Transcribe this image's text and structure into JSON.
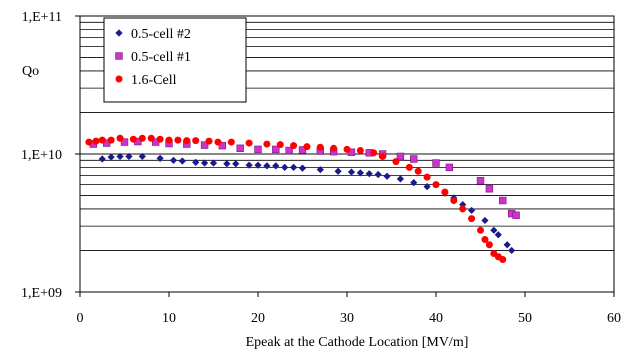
{
  "chart_data": {
    "type": "scatter",
    "xlabel": "Epeak at the Cathode Location  [MV/m]",
    "ylabel": "Qo",
    "xlim": [
      0,
      60
    ],
    "ylim": [
      1000000000.0,
      100000000000.0
    ],
    "y_scale": "log",
    "x_ticks": [
      0,
      10,
      20,
      30,
      40,
      50,
      60
    ],
    "y_ticks": [
      {
        "value": 1000000000.0,
        "label": "1,E+09"
      },
      {
        "value": 10000000000.0,
        "label": "1,E+10"
      },
      {
        "value": 100000000000.0,
        "label": "1,E+11"
      }
    ],
    "grid": {
      "horizontal_minor": true,
      "vertical": false
    },
    "legend_position": "top-left",
    "series": [
      {
        "name": "0.5-cell #2",
        "marker": "diamond",
        "color": "#1a1a8c",
        "points": [
          [
            2.5,
            9200000000.0
          ],
          [
            3.5,
            9500000000.0
          ],
          [
            4.5,
            9600000000.0
          ],
          [
            5.5,
            9600000000.0
          ],
          [
            7.0,
            9600000000.0
          ],
          [
            9.0,
            9300000000.0
          ],
          [
            10.5,
            9000000000.0
          ],
          [
            11.5,
            8900000000.0
          ],
          [
            13.0,
            8700000000.0
          ],
          [
            14.0,
            8600000000.0
          ],
          [
            15.0,
            8600000000.0
          ],
          [
            16.5,
            8500000000.0
          ],
          [
            17.5,
            8500000000.0
          ],
          [
            19.0,
            8300000000.0
          ],
          [
            20.0,
            8300000000.0
          ],
          [
            21.0,
            8200000000.0
          ],
          [
            22.0,
            8200000000.0
          ],
          [
            23.0,
            8000000000.0
          ],
          [
            24.0,
            8000000000.0
          ],
          [
            25.0,
            7900000000.0
          ],
          [
            27.0,
            7700000000.0
          ],
          [
            29.0,
            7500000000.0
          ],
          [
            30.5,
            7400000000.0
          ],
          [
            31.5,
            7300000000.0
          ],
          [
            32.5,
            7200000000.0
          ],
          [
            33.5,
            7100000000.0
          ],
          [
            34.5,
            6900000000.0
          ],
          [
            36.0,
            6600000000.0
          ],
          [
            37.5,
            6200000000.0
          ],
          [
            39.0,
            5800000000.0
          ],
          [
            41.0,
            5200000000.0
          ],
          [
            42.0,
            4800000000.0
          ],
          [
            43.0,
            4300000000.0
          ],
          [
            44.0,
            3900000000.0
          ],
          [
            45.5,
            3300000000.0
          ],
          [
            46.5,
            2800000000.0
          ],
          [
            47.0,
            2600000000.0
          ],
          [
            48.0,
            2200000000.0
          ],
          [
            48.5,
            2000000000.0
          ]
        ]
      },
      {
        "name": "0.5-cell #1",
        "marker": "square",
        "color": "#cc33cc",
        "points": [
          [
            1.5,
            11800000000.0
          ],
          [
            3.0,
            12000000000.0
          ],
          [
            5.0,
            12200000000.0
          ],
          [
            6.5,
            12300000000.0
          ],
          [
            8.5,
            12200000000.0
          ],
          [
            10.0,
            11900000000.0
          ],
          [
            12.0,
            11800000000.0
          ],
          [
            14.0,
            11600000000.0
          ],
          [
            16.0,
            11500000000.0
          ],
          [
            18.0,
            11000000000.0
          ],
          [
            20.0,
            10800000000.0
          ],
          [
            22.0,
            10800000000.0
          ],
          [
            23.5,
            10600000000.0
          ],
          [
            25.0,
            10700000000.0
          ],
          [
            27.0,
            10500000000.0
          ],
          [
            28.5,
            10400000000.0
          ],
          [
            30.5,
            10300000000.0
          ],
          [
            32.5,
            10200000000.0
          ],
          [
            34.0,
            10000000000.0
          ],
          [
            36.0,
            9600000000.0
          ],
          [
            37.5,
            9200000000.0
          ],
          [
            40.0,
            8600000000.0
          ],
          [
            41.5,
            8000000000.0
          ],
          [
            45.0,
            6400000000.0
          ],
          [
            46.0,
            5600000000.0
          ],
          [
            47.5,
            4600000000.0
          ],
          [
            48.5,
            3700000000.0
          ],
          [
            49.0,
            3600000000.0
          ]
        ]
      },
      {
        "name": "1.6-Cell",
        "marker": "circle",
        "color": "#ff0000",
        "points": [
          [
            1.0,
            12200000000.0
          ],
          [
            1.8,
            12400000000.0
          ],
          [
            2.5,
            12600000000.0
          ],
          [
            3.5,
            12600000000.0
          ],
          [
            4.5,
            13000000000.0
          ],
          [
            6.0,
            12800000000.0
          ],
          [
            7.0,
            13000000000.0
          ],
          [
            8.0,
            13000000000.0
          ],
          [
            9.0,
            12800000000.0
          ],
          [
            10.0,
            12600000000.0
          ],
          [
            11.0,
            12600000000.0
          ],
          [
            12.0,
            12500000000.0
          ],
          [
            13.0,
            12500000000.0
          ],
          [
            14.5,
            12400000000.0
          ],
          [
            15.5,
            12200000000.0
          ],
          [
            17.0,
            12200000000.0
          ],
          [
            19.0,
            12000000000.0
          ],
          [
            21.0,
            11800000000.0
          ],
          [
            22.5,
            11700000000.0
          ],
          [
            24.0,
            11500000000.0
          ],
          [
            25.5,
            11300000000.0
          ],
          [
            27.0,
            11200000000.0
          ],
          [
            28.5,
            11000000000.0
          ],
          [
            30.0,
            10800000000.0
          ],
          [
            31.5,
            10600000000.0
          ],
          [
            33.0,
            10200000000.0
          ],
          [
            34.0,
            9600000000.0
          ],
          [
            35.5,
            8800000000.0
          ],
          [
            37.0,
            8000000000.0
          ],
          [
            38.0,
            7500000000.0
          ],
          [
            39.0,
            6800000000.0
          ],
          [
            40.0,
            6000000000.0
          ],
          [
            41.0,
            5300000000.0
          ],
          [
            42.0,
            4600000000.0
          ],
          [
            43.0,
            4000000000.0
          ],
          [
            44.0,
            3400000000.0
          ],
          [
            45.0,
            2800000000.0
          ],
          [
            45.5,
            2400000000.0
          ],
          [
            46.0,
            2200000000.0
          ],
          [
            46.5,
            1900000000.0
          ],
          [
            47.0,
            1800000000.0
          ],
          [
            47.5,
            1720000000.0
          ]
        ]
      }
    ]
  }
}
